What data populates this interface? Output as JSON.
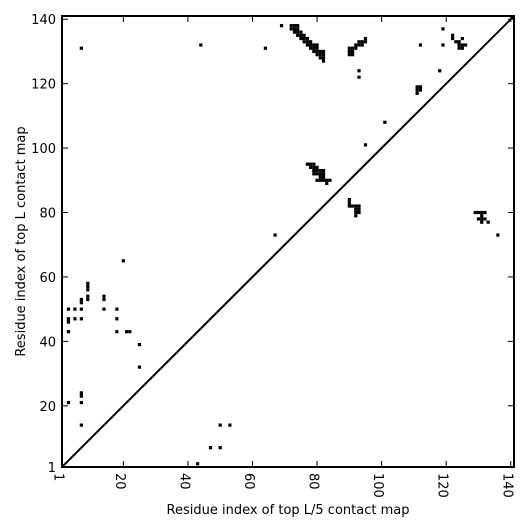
{
  "chart_data": {
    "type": "scatter",
    "subtype": "contact-map",
    "xlabel": "Residue index of top L/5 contact map",
    "ylabel": "Residue index of top L contact map",
    "xlim": [
      1,
      141
    ],
    "ylim": [
      1,
      141
    ],
    "x_ticks": [
      1,
      20,
      40,
      60,
      80,
      100,
      120,
      140
    ],
    "y_ticks": [
      1,
      20,
      40,
      60,
      80,
      100,
      120,
      140
    ],
    "x_tick_labels": [
      "1",
      "20",
      "40",
      "60",
      "80",
      "100",
      "120",
      "140"
    ],
    "y_tick_labels": [
      "1",
      "20",
      "40",
      "60",
      "80",
      "100",
      "120",
      "140"
    ],
    "diagonal_line": true,
    "marker_color": "#000000",
    "grid": false,
    "top_L_contacts": [
      [
        7,
        131
      ],
      [
        44,
        132
      ],
      [
        64,
        131
      ],
      [
        69,
        138
      ],
      [
        72,
        138
      ],
      [
        73,
        138
      ],
      [
        74,
        138
      ],
      [
        72,
        137
      ],
      [
        73,
        137
      ],
      [
        74,
        137
      ],
      [
        73,
        136
      ],
      [
        74,
        136
      ],
      [
        75,
        136
      ],
      [
        74,
        135
      ],
      [
        75,
        135
      ],
      [
        76,
        135
      ],
      [
        75,
        134
      ],
      [
        76,
        134
      ],
      [
        77,
        134
      ],
      [
        76,
        133
      ],
      [
        77,
        133
      ],
      [
        78,
        133
      ],
      [
        77,
        132
      ],
      [
        78,
        132
      ],
      [
        79,
        132
      ],
      [
        80,
        132
      ],
      [
        78,
        131
      ],
      [
        79,
        131
      ],
      [
        80,
        131
      ],
      [
        79,
        130
      ],
      [
        80,
        130
      ],
      [
        81,
        130
      ],
      [
        82,
        130
      ],
      [
        80,
        129
      ],
      [
        81,
        129
      ],
      [
        82,
        129
      ],
      [
        81,
        128
      ],
      [
        82,
        128
      ],
      [
        82,
        127
      ],
      [
        90,
        131
      ],
      [
        91,
        131
      ],
      [
        90,
        130
      ],
      [
        91,
        130
      ],
      [
        92,
        131
      ],
      [
        92,
        132
      ],
      [
        93,
        132
      ],
      [
        94,
        132
      ],
      [
        93,
        133
      ],
      [
        94,
        133
      ],
      [
        95,
        133
      ],
      [
        95,
        134
      ],
      [
        90,
        129
      ],
      [
        91,
        129
      ],
      [
        93,
        124
      ],
      [
        93,
        122
      ],
      [
        101,
        108
      ],
      [
        95,
        101
      ],
      [
        112,
        132
      ],
      [
        118,
        124
      ],
      [
        119,
        137
      ],
      [
        119,
        132
      ],
      [
        111,
        119
      ],
      [
        112,
        119
      ],
      [
        111,
        118
      ],
      [
        112,
        118
      ],
      [
        111,
        117
      ],
      [
        122,
        135
      ],
      [
        122,
        134
      ],
      [
        123,
        133
      ],
      [
        124,
        133
      ],
      [
        125,
        134
      ],
      [
        124,
        132
      ],
      [
        125,
        132
      ],
      [
        126,
        132
      ],
      [
        124,
        131
      ],
      [
        125,
        131
      ],
      [
        77,
        95
      ],
      [
        78,
        95
      ],
      [
        79,
        95
      ],
      [
        78,
        94
      ],
      [
        79,
        94
      ],
      [
        80,
        94
      ],
      [
        79,
        93
      ],
      [
        80,
        93
      ],
      [
        81,
        93
      ],
      [
        82,
        93
      ],
      [
        79,
        92
      ],
      [
        80,
        92
      ],
      [
        81,
        92
      ],
      [
        82,
        92
      ],
      [
        81,
        91
      ],
      [
        82,
        91
      ],
      [
        80,
        90
      ],
      [
        81,
        90
      ],
      [
        82,
        90
      ],
      [
        83,
        90
      ],
      [
        84,
        90
      ],
      [
        83,
        89
      ],
      [
        90,
        84
      ],
      [
        90,
        83
      ],
      [
        90,
        82
      ],
      [
        91,
        82
      ],
      [
        92,
        82
      ],
      [
        93,
        82
      ],
      [
        92,
        81
      ],
      [
        93,
        81
      ],
      [
        92,
        80
      ],
      [
        93,
        80
      ],
      [
        92,
        79
      ],
      [
        129,
        80
      ],
      [
        130,
        80
      ],
      [
        131,
        80
      ],
      [
        132,
        80
      ],
      [
        131,
        79
      ],
      [
        130,
        78
      ],
      [
        131,
        78
      ],
      [
        132,
        78
      ],
      [
        133,
        77
      ],
      [
        131,
        77
      ],
      [
        136,
        73
      ],
      [
        67,
        73
      ],
      [
        7,
        53
      ],
      [
        7,
        52
      ],
      [
        9,
        58
      ],
      [
        9,
        57
      ],
      [
        9,
        56
      ],
      [
        9,
        54
      ],
      [
        9,
        53
      ],
      [
        14,
        54
      ],
      [
        14,
        53
      ],
      [
        3,
        50
      ],
      [
        5,
        50
      ],
      [
        7,
        50
      ],
      [
        3,
        47
      ],
      [
        3,
        46
      ],
      [
        5,
        47
      ],
      [
        7,
        47
      ],
      [
        14,
        50
      ],
      [
        18,
        50
      ],
      [
        18,
        47
      ],
      [
        3,
        43
      ],
      [
        18,
        43
      ],
      [
        21,
        43
      ],
      [
        22,
        43
      ],
      [
        20,
        65
      ],
      [
        25,
        39
      ],
      [
        25,
        32
      ],
      [
        7,
        24
      ],
      [
        7,
        23
      ],
      [
        3,
        21
      ],
      [
        7,
        21
      ],
      [
        7,
        14
      ]
    ],
    "top_L5_contacts": [
      [
        43,
        2
      ],
      [
        47,
        7
      ],
      [
        50,
        7
      ],
      [
        50,
        14
      ],
      [
        53,
        14
      ]
    ]
  }
}
